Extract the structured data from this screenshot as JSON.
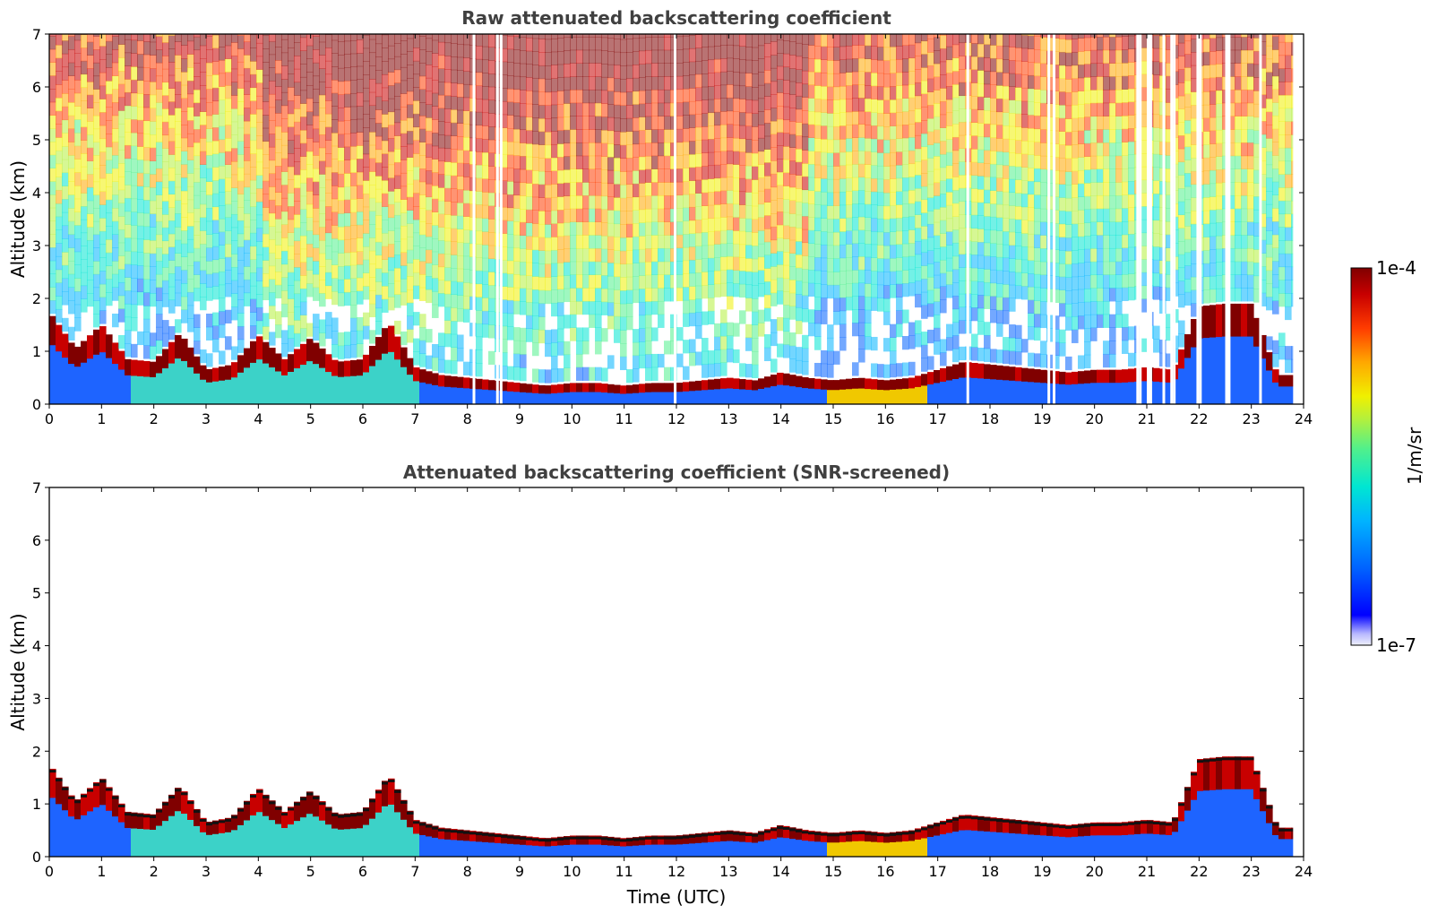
{
  "chart_data": [
    {
      "type": "heatmap",
      "title": "Raw attenuated backscattering coefficient",
      "xlabel": "",
      "ylabel": "Altitude (km)",
      "xlim": [
        0,
        24
      ],
      "ylim": [
        0,
        7
      ],
      "xticks": [
        "0",
        "1",
        "2",
        "3",
        "4",
        "5",
        "6",
        "7",
        "8",
        "9",
        "10",
        "11",
        "12",
        "13",
        "14",
        "15",
        "16",
        "17",
        "18",
        "19",
        "20",
        "21",
        "22",
        "23",
        "24"
      ],
      "yticks": [
        "0",
        "1",
        "2",
        "3",
        "4",
        "5",
        "6",
        "7"
      ],
      "screened": false,
      "layer_top_km": [
        [
          0,
          1.7
        ],
        [
          0.5,
          1.0
        ],
        [
          1.0,
          1.45
        ],
        [
          1.5,
          0.8
        ],
        [
          2.0,
          0.75
        ],
        [
          2.5,
          1.3
        ],
        [
          3.0,
          0.6
        ],
        [
          3.5,
          0.7
        ],
        [
          4.0,
          1.25
        ],
        [
          4.5,
          0.8
        ],
        [
          5.0,
          1.2
        ],
        [
          5.5,
          0.75
        ],
        [
          6.0,
          0.8
        ],
        [
          6.5,
          1.5
        ],
        [
          7.0,
          0.65
        ],
        [
          7.5,
          0.5
        ],
        [
          8.0,
          0.45
        ],
        [
          8.5,
          0.4
        ],
        [
          9.0,
          0.35
        ],
        [
          9.5,
          0.3
        ],
        [
          10.0,
          0.35
        ],
        [
          10.5,
          0.35
        ],
        [
          11.0,
          0.3
        ],
        [
          11.5,
          0.35
        ],
        [
          12.0,
          0.35
        ],
        [
          12.5,
          0.4
        ],
        [
          13.0,
          0.45
        ],
        [
          13.5,
          0.4
        ],
        [
          14.0,
          0.55
        ],
        [
          14.5,
          0.45
        ],
        [
          15.0,
          0.4
        ],
        [
          15.5,
          0.45
        ],
        [
          16.0,
          0.4
        ],
        [
          16.5,
          0.45
        ],
        [
          17.0,
          0.6
        ],
        [
          17.5,
          0.75
        ],
        [
          18.0,
          0.7
        ],
        [
          18.5,
          0.65
        ],
        [
          19.0,
          0.6
        ],
        [
          19.5,
          0.55
        ],
        [
          20.0,
          0.6
        ],
        [
          20.5,
          0.6
        ],
        [
          21.0,
          0.65
        ],
        [
          21.5,
          0.6
        ],
        [
          22.0,
          1.8
        ],
        [
          22.5,
          1.85
        ],
        [
          23.0,
          1.85
        ],
        [
          23.5,
          0.5
        ],
        [
          23.8,
          0.5
        ]
      ],
      "gaps_utc": [
        8.1,
        8.55,
        8.62,
        11.95,
        17.55,
        19.1,
        19.2,
        20.8,
        20.85,
        21.0,
        21.05,
        21.3,
        21.45,
        21.5,
        21.95,
        22.0,
        22.5,
        22.55,
        23.15
      ]
    },
    {
      "type": "heatmap",
      "title": "Attenuated backscattering coefficient (SNR-screened)",
      "xlabel": "Time (UTC)",
      "ylabel": "Altitude (km)",
      "xlim": [
        0,
        24
      ],
      "ylim": [
        0,
        7
      ],
      "xticks": [
        "0",
        "1",
        "2",
        "3",
        "4",
        "5",
        "6",
        "7",
        "8",
        "9",
        "10",
        "11",
        "12",
        "13",
        "14",
        "15",
        "16",
        "17",
        "18",
        "19",
        "20",
        "21",
        "22",
        "23",
        "24"
      ],
      "yticks": [
        "0",
        "1",
        "2",
        "3",
        "4",
        "5",
        "6",
        "7"
      ],
      "screened": true
    }
  ],
  "colorbar": {
    "label": "1/m/sr",
    "max_label": "1e-4",
    "min_label": "1e-7",
    "scale": "log",
    "colormap": [
      "#e6e6f5",
      "#c8c8ff",
      "#0000ff",
      "#0050ff",
      "#00a0ff",
      "#00e0e0",
      "#30f0a0",
      "#a0f050",
      "#f0f000",
      "#ffa000",
      "#ff3000",
      "#c00000",
      "#800000"
    ]
  }
}
